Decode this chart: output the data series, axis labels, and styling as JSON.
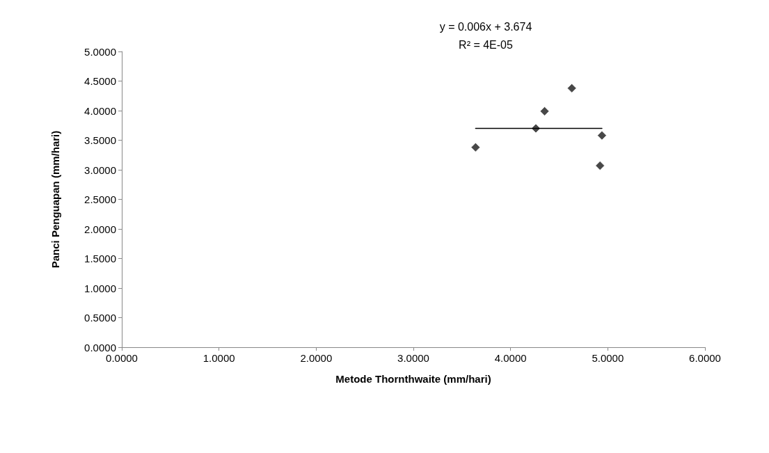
{
  "chart_data": {
    "type": "scatter",
    "xlabel": "Metode Thornthwaite (mm/hari)",
    "ylabel": "Panci Penguapan (mm/hari)",
    "annotations": [
      "y = 0.006x + 3.674",
      "R² = 4E-05"
    ],
    "series": [
      {
        "color": "#1a1a1a",
        "marker": "diamond",
        "x": [
          3.64,
          4.26,
          4.35,
          4.63,
          4.94,
          4.92
        ],
        "values": [
          3.38,
          3.7,
          3.99,
          4.38,
          3.58,
          3.07
        ]
      },
      {
        "type": "line",
        "color": "#000000",
        "marker": "none",
        "line_style": "solid",
        "x": [
          3.64,
          4.94
        ],
        "values": [
          3.7,
          3.7
        ]
      }
    ],
    "xlim": [
      0,
      6
    ],
    "xticks": [
      {
        "value": 0,
        "label": "0.0000"
      },
      {
        "value": 1,
        "label": "1.0000"
      },
      {
        "value": 2,
        "label": "2.0000"
      },
      {
        "value": 3,
        "label": "3.0000"
      },
      {
        "value": 4,
        "label": "4.0000"
      },
      {
        "value": 5,
        "label": "5.0000"
      },
      {
        "value": 6,
        "label": "6.0000"
      }
    ],
    "ylim": [
      0,
      5
    ],
    "yticks": [
      {
        "value": 0,
        "label": "0.0000"
      },
      {
        "value": 0.5,
        "label": "0.5000"
      },
      {
        "value": 1,
        "label": "1.0000"
      },
      {
        "value": 1.5,
        "label": "1.5000"
      },
      {
        "value": 2,
        "label": "2.0000"
      },
      {
        "value": 2.5,
        "label": "2.5000"
      },
      {
        "value": 3,
        "label": "3.0000"
      },
      {
        "value": 3.5,
        "label": "3.5000"
      },
      {
        "value": 4,
        "label": "4.0000"
      },
      {
        "value": 4.5,
        "label": "4.5000"
      },
      {
        "value": 5,
        "label": "5.0000"
      }
    ],
    "grid": false
  }
}
